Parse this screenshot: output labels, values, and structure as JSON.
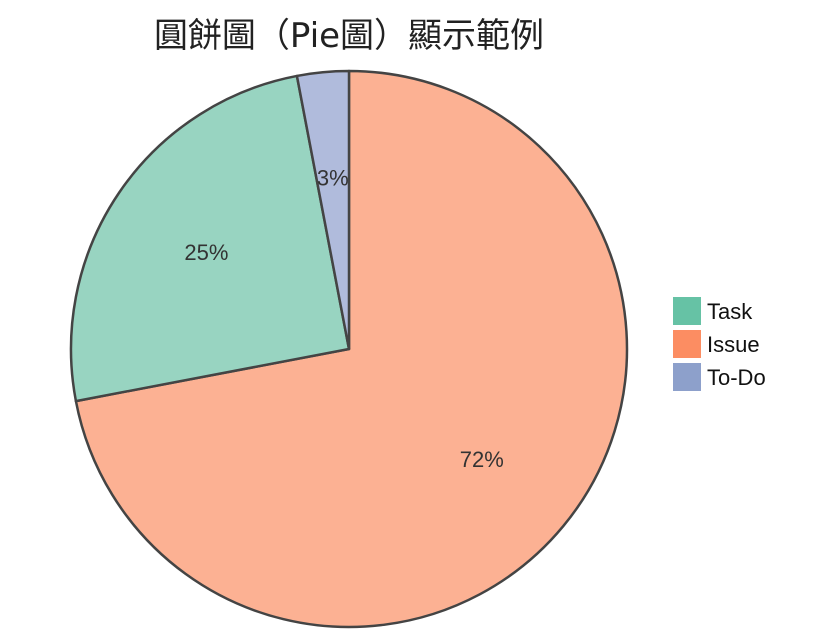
{
  "chart_data": {
    "type": "pie",
    "title": "圓餅圖（Pie圖）顯示範例",
    "slices": [
      {
        "label": "Issue",
        "value": 72,
        "display": "72%",
        "color": "#fcb193",
        "legend_color": "#fc8d62"
      },
      {
        "label": "Task",
        "value": 25,
        "display": "25%",
        "color": "#98d4c1",
        "legend_color": "#66c2a5"
      },
      {
        "label": "To-Do",
        "value": 3,
        "display": "3%",
        "color": "#b0bbdc",
        "legend_color": "#8da0cb"
      }
    ],
    "legend": {
      "placement": "right",
      "items": [
        "Task",
        "Issue",
        "To-Do"
      ]
    },
    "start_angle": "12 o'clock",
    "direction": "clockwise",
    "stroke_color": "#444444"
  }
}
